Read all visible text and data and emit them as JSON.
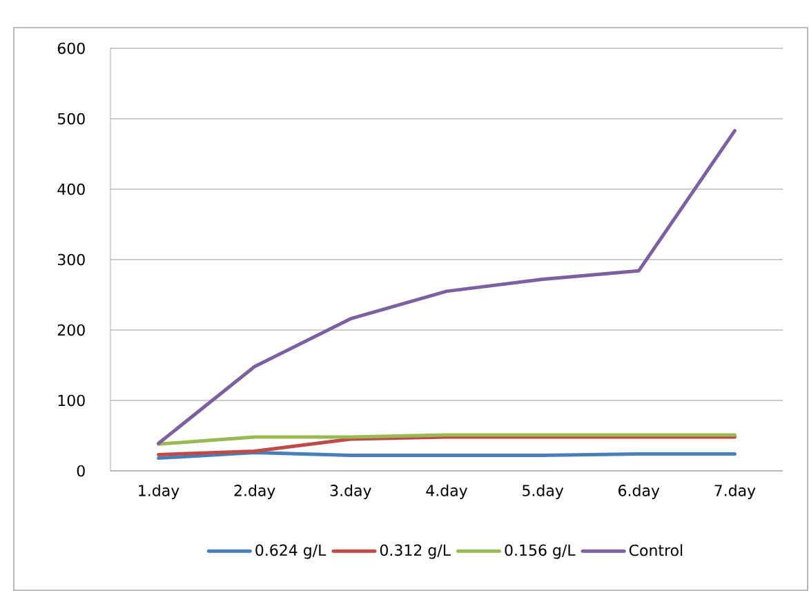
{
  "chart_data": {
    "type": "line",
    "categories": [
      "1.day",
      "2.day",
      "3.day",
      "4.day",
      "5.day",
      "6.day",
      "7.day"
    ],
    "series": [
      {
        "name": "0.624 g/L",
        "color": "#4a7ebb",
        "values": [
          18,
          26,
          22,
          22,
          22,
          24,
          24
        ]
      },
      {
        "name": "0.312 g/L",
        "color": "#be4b48",
        "values": [
          23,
          28,
          45,
          48,
          48,
          48,
          48
        ]
      },
      {
        "name": "0.156 g/L",
        "color": "#98b954",
        "values": [
          38,
          48,
          48,
          51,
          51,
          51,
          51
        ]
      },
      {
        "name": "Control",
        "color": "#7d60a0",
        "values": [
          39,
          148,
          216,
          255,
          272,
          284,
          483
        ]
      }
    ],
    "ylim": [
      0,
      600
    ],
    "yticks": [
      0,
      100,
      200,
      300,
      400,
      500,
      600
    ],
    "grid": "y",
    "legend": "bottom",
    "marker": "none",
    "line_style": "solid"
  }
}
